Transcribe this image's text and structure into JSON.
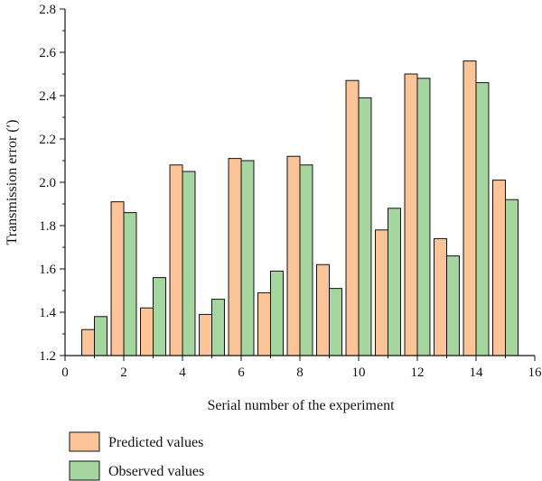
{
  "chart_data": {
    "type": "bar",
    "xlabel": "Serial number of the experiment",
    "ylabel": "Transmission error (′)",
    "xlim": [
      0,
      16
    ],
    "ylim": [
      1.2,
      2.8
    ],
    "x_ticks": [
      0,
      2,
      4,
      6,
      8,
      10,
      12,
      14,
      16
    ],
    "y_ticks": [
      1.2,
      1.4,
      1.6,
      1.8,
      2.0,
      2.2,
      2.4,
      2.6,
      2.8
    ],
    "x_tick_labels": [
      "0",
      "2",
      "4",
      "6",
      "8",
      "10",
      "12",
      "14",
      "16"
    ],
    "y_tick_labels": [
      "1.2",
      "1.4",
      "1.6",
      "1.8",
      "2.0",
      "2.2",
      "2.4",
      "2.6",
      "2.8"
    ],
    "categories": [
      1,
      2,
      3,
      4,
      5,
      6,
      7,
      8,
      9,
      10,
      11,
      12,
      13,
      14,
      15
    ],
    "series": [
      {
        "name": "Predicted values",
        "color": "#fdc497",
        "values": [
          1.32,
          1.91,
          1.42,
          2.08,
          1.39,
          2.11,
          1.49,
          2.12,
          1.62,
          2.47,
          1.78,
          2.5,
          1.74,
          2.56,
          2.01
        ]
      },
      {
        "name": "Observed values",
        "color": "#a5d6a0",
        "values": [
          1.38,
          1.86,
          1.56,
          2.05,
          1.46,
          2.1,
          1.59,
          2.08,
          1.51,
          2.39,
          1.88,
          2.48,
          1.66,
          2.46,
          1.92
        ]
      }
    ],
    "grid": false,
    "legend_position": "bottom-left"
  }
}
